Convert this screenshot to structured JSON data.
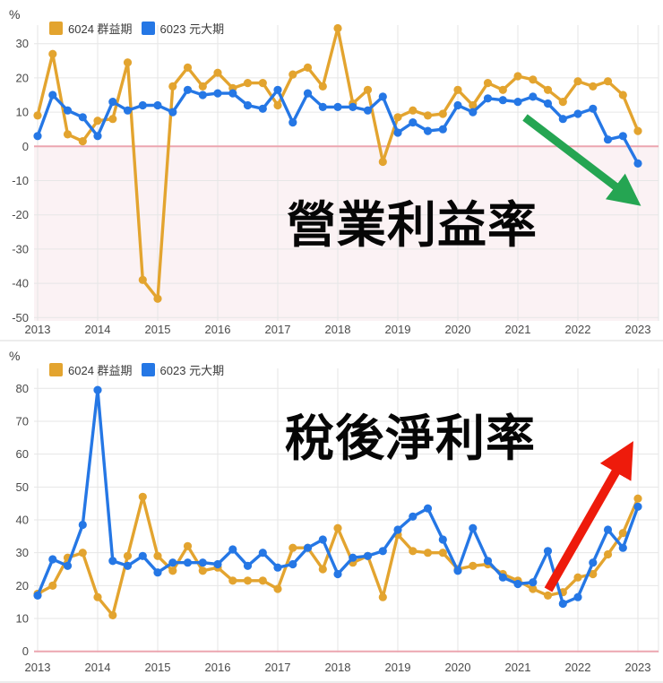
{
  "colors": {
    "series_6024": "#E3A42F",
    "series_6023": "#2577E5",
    "grid": "#E6E6E6",
    "zero_line": "#ECA6B0",
    "negative_bg": "#FBF2F4",
    "axis_text": "#4A4A4A",
    "annotation_text": "#060606",
    "arrow_down": "#25A552",
    "arrow_up": "#EE1B0B"
  },
  "chart_data": [
    {
      "type": "line",
      "title": "營業利益率",
      "percent_label": "%",
      "legend": [
        {
          "name": "6024 群益期",
          "color": "#E3A42F"
        },
        {
          "name": "6023 元大期",
          "color": "#2577E5"
        }
      ],
      "x_tick_labels": [
        "2013",
        "2014",
        "2015",
        "2016",
        "2017",
        "2018",
        "2019",
        "2020",
        "2021",
        "2022",
        "2023"
      ],
      "points_per_year": 4,
      "x_unit": "quarter",
      "ylim": [
        -50,
        30
      ],
      "yticks": [
        30,
        20,
        10,
        0,
        -10,
        -20,
        -30,
        -40,
        -50
      ],
      "ylabel": "%",
      "grid": true,
      "legend_position": "top-left",
      "series": [
        {
          "name": "6024 群益期",
          "color": "#E3A42F",
          "values": [
            9,
            27,
            3.5,
            1.5,
            7.5,
            8,
            24.5,
            -39,
            -44.5,
            17.5,
            23,
            17.5,
            21.5,
            17,
            18.5,
            18.5,
            12,
            21,
            23,
            17.5,
            34.5,
            12.5,
            16.5,
            -4.5,
            8.5,
            10.5,
            9,
            9.5,
            16.5,
            12,
            18.5,
            16.5,
            20.5,
            19.5,
            16.5,
            13,
            19,
            17.5,
            19,
            15,
            4.5
          ]
        },
        {
          "name": "6023 元大期",
          "color": "#2577E5",
          "values": [
            3,
            15,
            10.5,
            8.5,
            3,
            13,
            10.5,
            12,
            12,
            10,
            16.5,
            15,
            15.5,
            15.5,
            12,
            11,
            16.5,
            7,
            15.5,
            11.5,
            11.5,
            11.5,
            10.5,
            14.5,
            4,
            7,
            4.5,
            5,
            12,
            10,
            14,
            13.5,
            13,
            14.5,
            12.5,
            8,
            9.5,
            11,
            2,
            3,
            -5
          ]
        }
      ],
      "annotation": {
        "text": "營業利益率"
      },
      "arrow": {
        "color": "#25A552",
        "from": [
          586,
          131
        ],
        "to": [
          704,
          221
        ],
        "direction": "down-right"
      }
    },
    {
      "type": "line",
      "title": "稅後淨利率",
      "percent_label": "%",
      "legend": [
        {
          "name": "6024 群益期",
          "color": "#E3A42F"
        },
        {
          "name": "6023 元大期",
          "color": "#2577E5"
        }
      ],
      "x_tick_labels": [
        "2013",
        "2014",
        "2015",
        "2016",
        "2017",
        "2018",
        "2019",
        "2020",
        "2021",
        "2022",
        "2023"
      ],
      "points_per_year": 4,
      "x_unit": "quarter",
      "ylim": [
        0,
        80
      ],
      "yticks": [
        80,
        70,
        60,
        50,
        40,
        30,
        20,
        10,
        0
      ],
      "ylabel": "%",
      "grid": true,
      "legend_position": "top-left",
      "series": [
        {
          "name": "6024 群益期",
          "color": "#E3A42F",
          "values": [
            17.5,
            20,
            28.5,
            30,
            16.5,
            11,
            29,
            47,
            29,
            24.5,
            32,
            24.5,
            25.5,
            21.5,
            21.5,
            21.5,
            19,
            31.5,
            31.5,
            25,
            37.5,
            27,
            29,
            16.5,
            35.5,
            30.5,
            30,
            30,
            25,
            26,
            26.5,
            23.5,
            21.5,
            19,
            17,
            18,
            22.5,
            23.5,
            29.5,
            36,
            46.5
          ]
        },
        {
          "name": "6023 元大期",
          "color": "#2577E5",
          "values": [
            17,
            28,
            26,
            38.5,
            79.5,
            27.5,
            26,
            29,
            24,
            27,
            27,
            27,
            26.5,
            31,
            26,
            30,
            25.5,
            26.5,
            31.5,
            34,
            23.5,
            28.5,
            29,
            30.5,
            37,
            41,
            43.5,
            34,
            24.5,
            37.5,
            27.5,
            22.5,
            20.5,
            21,
            30.5,
            14.5,
            16.5,
            27,
            37,
            31.5,
            44
          ]
        }
      ],
      "annotation": {
        "text": "稅後淨利率"
      },
      "arrow": {
        "color": "#EE1B0B",
        "from": [
          612,
          277
        ],
        "to": [
          699,
          125
        ],
        "direction": "up-right"
      }
    }
  ]
}
